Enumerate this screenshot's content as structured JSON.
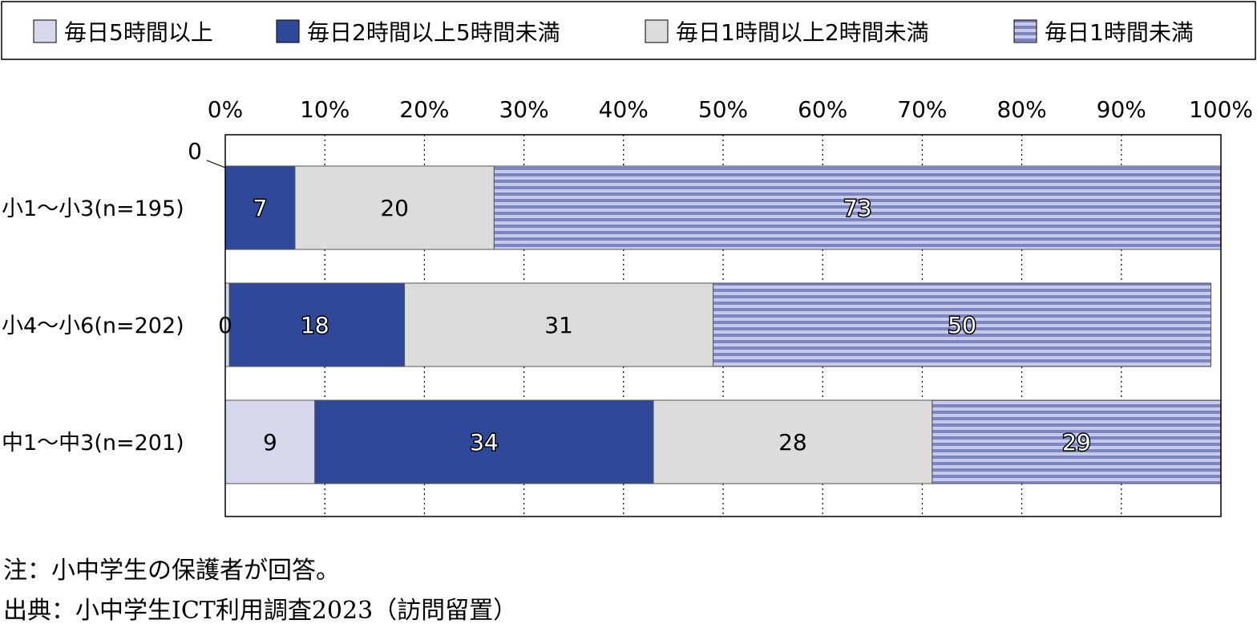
{
  "chart_data": {
    "type": "bar",
    "orientation": "horizontal",
    "stacked": "percent",
    "categories": [
      "小1～小3(n=195)",
      "小4～小6(n=202)",
      "中1～中3(n=201)"
    ],
    "series": [
      {
        "name": "毎日5時間以上",
        "values": [
          0,
          0,
          9
        ],
        "color": "#d5d7ea"
      },
      {
        "name": "毎日2時間以上5時間未満",
        "values": [
          7,
          18,
          34
        ],
        "color": "#30489a"
      },
      {
        "name": "毎日1時間以上2時間未満",
        "values": [
          20,
          31,
          28
        ],
        "color": "#dcdcdc"
      },
      {
        "name": "毎日1時間未満",
        "values": [
          73,
          50,
          29
        ],
        "color": "#7c84c2",
        "pattern": "horizontal-stripes"
      }
    ],
    "x_ticks": [
      "0%",
      "10%",
      "20%",
      "30%",
      "40%",
      "50%",
      "60%",
      "70%",
      "80%",
      "90%",
      "100%"
    ],
    "xlim": [
      0,
      100
    ],
    "legend_position": "top",
    "grid": "vertical-dotted",
    "annotations": [
      {
        "category": 0,
        "series": 0,
        "text": "0"
      },
      {
        "category": 1,
        "series": 0,
        "text": "0"
      }
    ]
  },
  "notes": {
    "note": "注：小中学生の保護者が回答。",
    "source": "出典：小中学生ICT利用調査2023（訪問留置）"
  }
}
